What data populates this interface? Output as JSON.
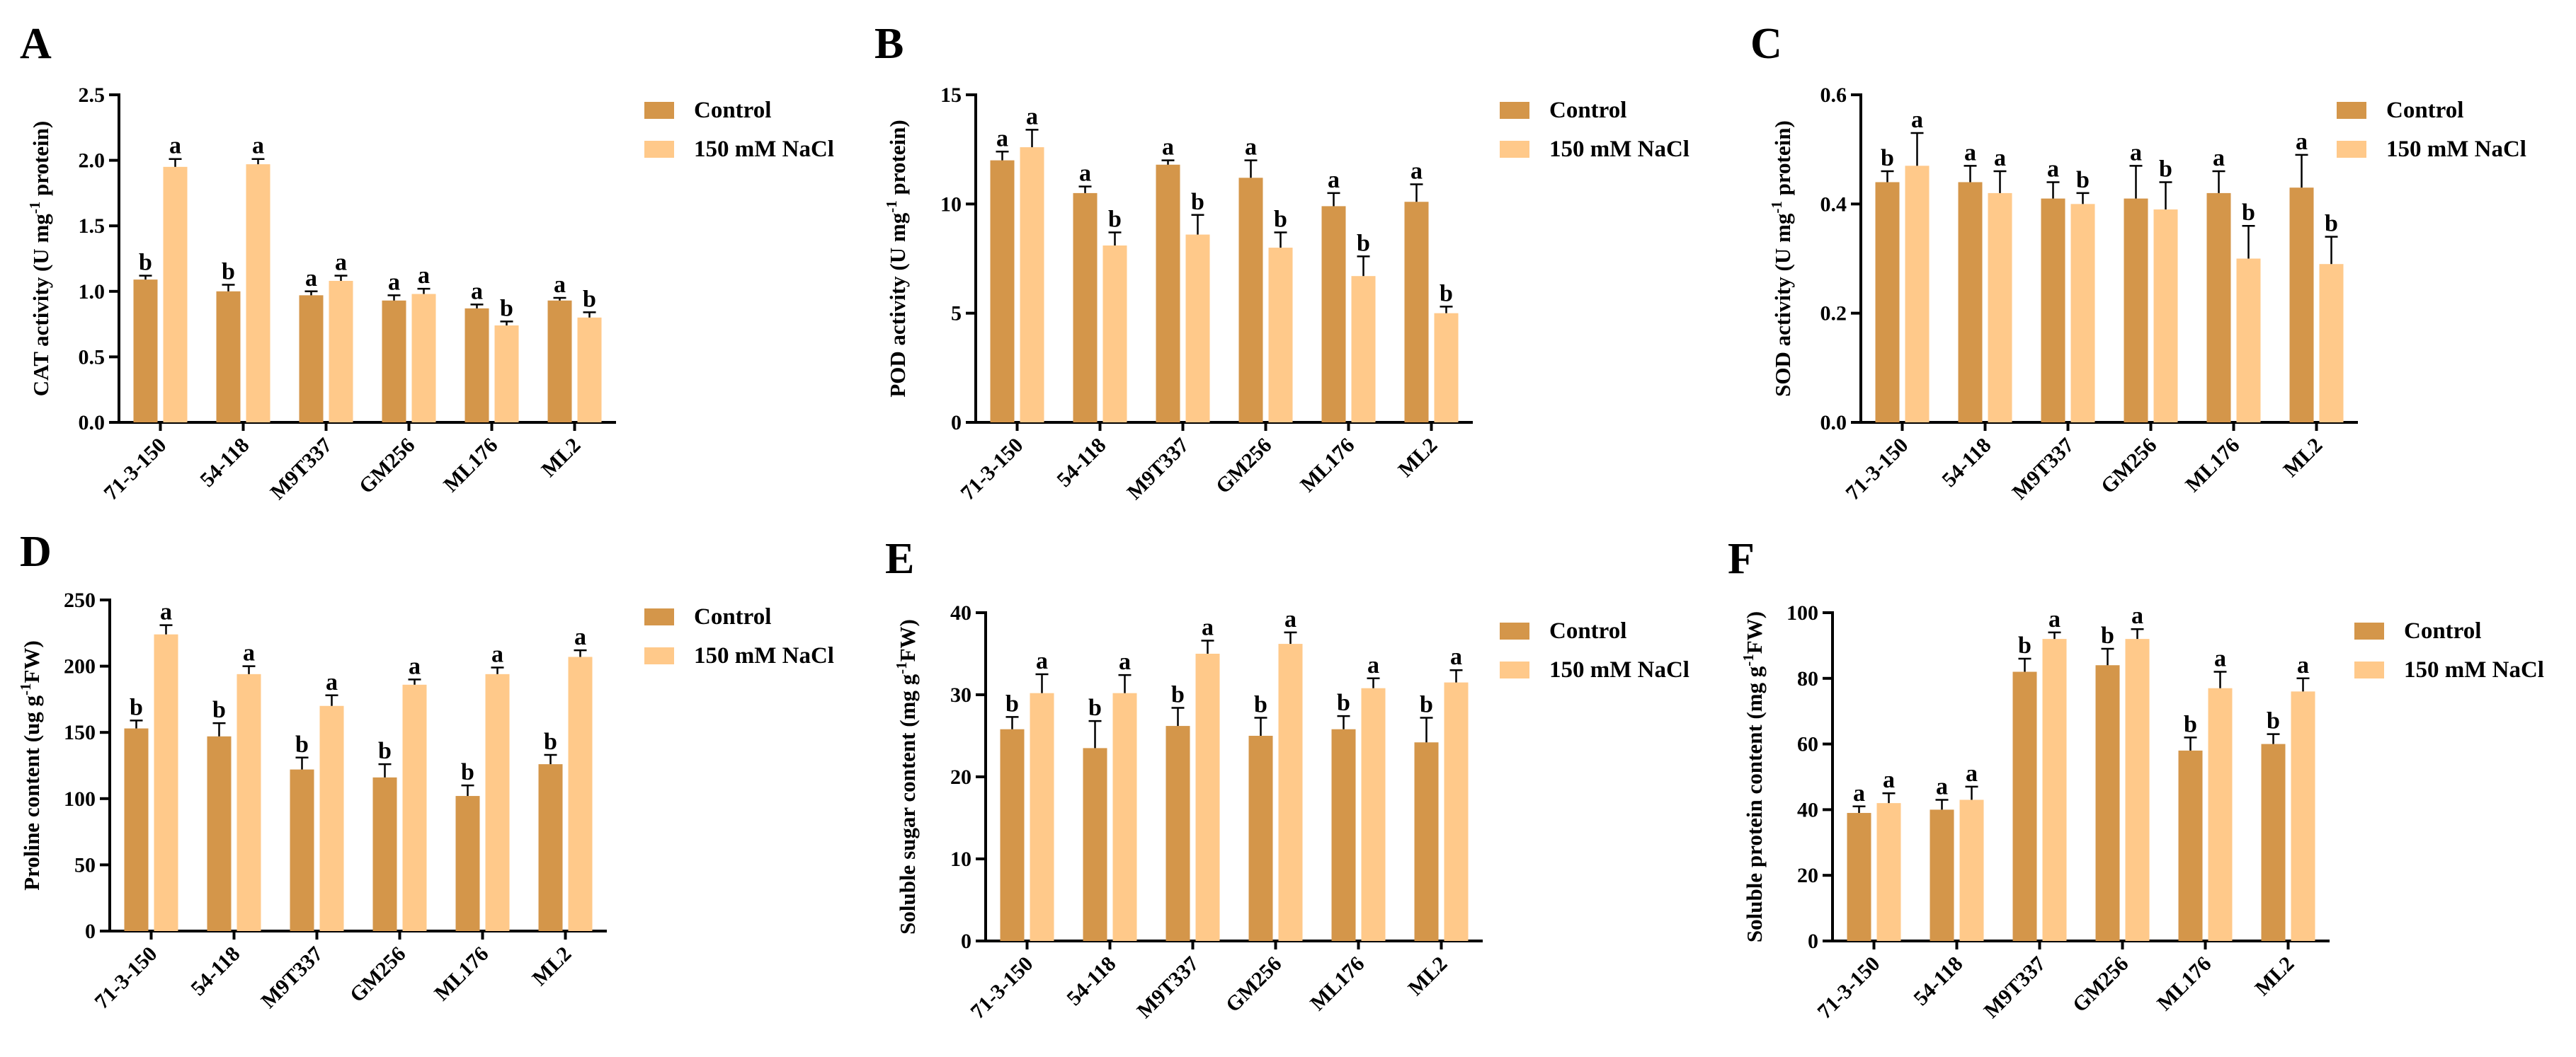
{
  "colors": {
    "control": "#D4964A",
    "nacl": "#FFC98A"
  },
  "series_names": [
    "Control",
    "150 mM NaCl"
  ],
  "chart_data": [
    {
      "panel": "A",
      "type": "bar",
      "categories": [
        "71-3-150",
        "54-118",
        "M9T337",
        "GM256",
        "ML176",
        "ML2"
      ],
      "ylabel_main": "CAT activity (U mg",
      "ylabel_sup": "-1",
      "ylabel_tail": " protein)",
      "ylim": [
        0,
        2.5
      ],
      "yticks": [
        "0.0",
        "0.5",
        "1.0",
        "1.5",
        "2.0",
        "2.5"
      ],
      "ytick_values": [
        0,
        0.5,
        1.0,
        1.5,
        2.0,
        2.5
      ],
      "series": [
        {
          "name": "Control",
          "values": [
            1.09,
            1.0,
            0.97,
            0.93,
            0.87,
            0.93
          ],
          "errors": [
            0.03,
            0.05,
            0.03,
            0.04,
            0.03,
            0.02
          ],
          "letters": [
            "b",
            "b",
            "a",
            "a",
            "a",
            "a"
          ]
        },
        {
          "name": "150 mM NaCl",
          "values": [
            1.95,
            1.97,
            1.08,
            0.98,
            0.74,
            0.8
          ],
          "errors": [
            0.06,
            0.04,
            0.04,
            0.04,
            0.03,
            0.04
          ],
          "letters": [
            "a",
            "a",
            "a",
            "a",
            "b",
            "b"
          ]
        }
      ]
    },
    {
      "panel": "B",
      "type": "bar",
      "categories": [
        "71-3-150",
        "54-118",
        "M9T337",
        "GM256",
        "ML176",
        "ML2"
      ],
      "ylabel_main": "POD activity (U mg",
      "ylabel_sup": "-1",
      "ylabel_tail": " protein)",
      "ylim": [
        0,
        15
      ],
      "yticks": [
        "0",
        "5",
        "10",
        "15"
      ],
      "ytick_values": [
        0,
        5,
        10,
        15
      ],
      "series": [
        {
          "name": "Control",
          "values": [
            12.0,
            10.5,
            11.8,
            11.2,
            9.9,
            10.1
          ],
          "errors": [
            0.4,
            0.3,
            0.2,
            0.8,
            0.6,
            0.8
          ],
          "letters": [
            "a",
            "a",
            "a",
            "a",
            "a",
            "a"
          ]
        },
        {
          "name": "150 mM NaCl",
          "values": [
            12.6,
            8.1,
            8.6,
            8.0,
            6.7,
            5.0
          ],
          "errors": [
            0.8,
            0.6,
            0.9,
            0.7,
            0.9,
            0.3
          ],
          "letters": [
            "a",
            "b",
            "b",
            "b",
            "b",
            "b"
          ]
        }
      ]
    },
    {
      "panel": "C",
      "type": "bar",
      "categories": [
        "71-3-150",
        "54-118",
        "M9T337",
        "GM256",
        "ML176",
        "ML2"
      ],
      "ylabel_main": "SOD activity (U mg",
      "ylabel_sup": "-1",
      "ylabel_tail": " protein)",
      "ylim": [
        0,
        0.6
      ],
      "yticks": [
        "0.0",
        "0.2",
        "0.4",
        "0.6"
      ],
      "ytick_values": [
        0,
        0.2,
        0.4,
        0.6
      ],
      "series": [
        {
          "name": "Control",
          "values": [
            0.44,
            0.44,
            0.41,
            0.41,
            0.42,
            0.43
          ],
          "errors": [
            0.02,
            0.03,
            0.03,
            0.06,
            0.04,
            0.06
          ],
          "letters": [
            "b",
            "a",
            "a",
            "a",
            "a",
            "a"
          ]
        },
        {
          "name": "150 mM NaCl",
          "values": [
            0.47,
            0.42,
            0.4,
            0.39,
            0.3,
            0.29
          ],
          "errors": [
            0.06,
            0.04,
            0.02,
            0.05,
            0.06,
            0.05
          ],
          "letters": [
            "a",
            "a",
            "b",
            "b",
            "b",
            "b"
          ]
        }
      ]
    },
    {
      "panel": "D",
      "type": "bar",
      "categories": [
        "71-3-150",
        "54-118",
        "M9T337",
        "GM256",
        "ML176",
        "ML2"
      ],
      "ylabel_main": "Proline content (ug g",
      "ylabel_sup": "-1",
      "ylabel_tail": "FW)",
      "ylim": [
        0,
        250
      ],
      "yticks": [
        "0",
        "50",
        "100",
        "150",
        "200",
        "250"
      ],
      "ytick_values": [
        0,
        50,
        100,
        150,
        200,
        250
      ],
      "series": [
        {
          "name": "Control",
          "values": [
            153,
            147,
            122,
            116,
            102,
            126
          ],
          "errors": [
            6,
            10,
            9,
            10,
            8,
            7
          ],
          "letters": [
            "b",
            "b",
            "b",
            "b",
            "b",
            "b"
          ]
        },
        {
          "name": "150 mM NaCl",
          "values": [
            224,
            194,
            170,
            186,
            194,
            207
          ],
          "errors": [
            7,
            6,
            8,
            4,
            5,
            5
          ],
          "letters": [
            "a",
            "a",
            "a",
            "a",
            "a",
            "a"
          ]
        }
      ]
    },
    {
      "panel": "E",
      "type": "bar",
      "categories": [
        "71-3-150",
        "54-118",
        "M9T337",
        "GM256",
        "ML176",
        "ML2"
      ],
      "ylabel_main": "Soluble sugar content (mg g",
      "ylabel_sup": "-1",
      "ylabel_tail": "FW)",
      "ylim": [
        0,
        40
      ],
      "yticks": [
        "0",
        "10",
        "20",
        "30",
        "40"
      ],
      "ytick_values": [
        0,
        10,
        20,
        30,
        40
      ],
      "series": [
        {
          "name": "Control",
          "values": [
            25.8,
            23.5,
            26.2,
            25.0,
            25.8,
            24.2
          ],
          "errors": [
            1.5,
            3.3,
            2.2,
            2.2,
            1.6,
            3.0
          ],
          "letters": [
            "b",
            "b",
            "b",
            "b",
            "b",
            "b"
          ]
        },
        {
          "name": "150 mM NaCl",
          "values": [
            30.2,
            30.2,
            35.0,
            36.2,
            30.8,
            31.5
          ],
          "errors": [
            2.3,
            2.2,
            1.6,
            1.4,
            1.2,
            1.5
          ],
          "letters": [
            "a",
            "a",
            "a",
            "a",
            "a",
            "a"
          ]
        }
      ]
    },
    {
      "panel": "F",
      "type": "bar",
      "categories": [
        "71-3-150",
        "54-118",
        "M9T337",
        "GM256",
        "ML176",
        "ML2"
      ],
      "ylabel_main": "Soluble protein content (mg g",
      "ylabel_sup": "-1",
      "ylabel_tail": "FW)",
      "ylim": [
        0,
        100
      ],
      "yticks": [
        "0",
        "20",
        "40",
        "60",
        "80",
        "100"
      ],
      "ytick_values": [
        0,
        20,
        40,
        60,
        80,
        100
      ],
      "series": [
        {
          "name": "Control",
          "values": [
            39,
            40,
            82,
            84,
            58,
            60
          ],
          "errors": [
            2,
            3,
            4,
            5,
            4,
            3
          ],
          "letters": [
            "a",
            "a",
            "b",
            "b",
            "b",
            "b"
          ]
        },
        {
          "name": "150 mM NaCl",
          "values": [
            42,
            43,
            92,
            92,
            77,
            76
          ],
          "errors": [
            3,
            4,
            2,
            3,
            5,
            4
          ],
          "letters": [
            "a",
            "a",
            "a",
            "a",
            "a",
            "a"
          ]
        }
      ]
    }
  ]
}
